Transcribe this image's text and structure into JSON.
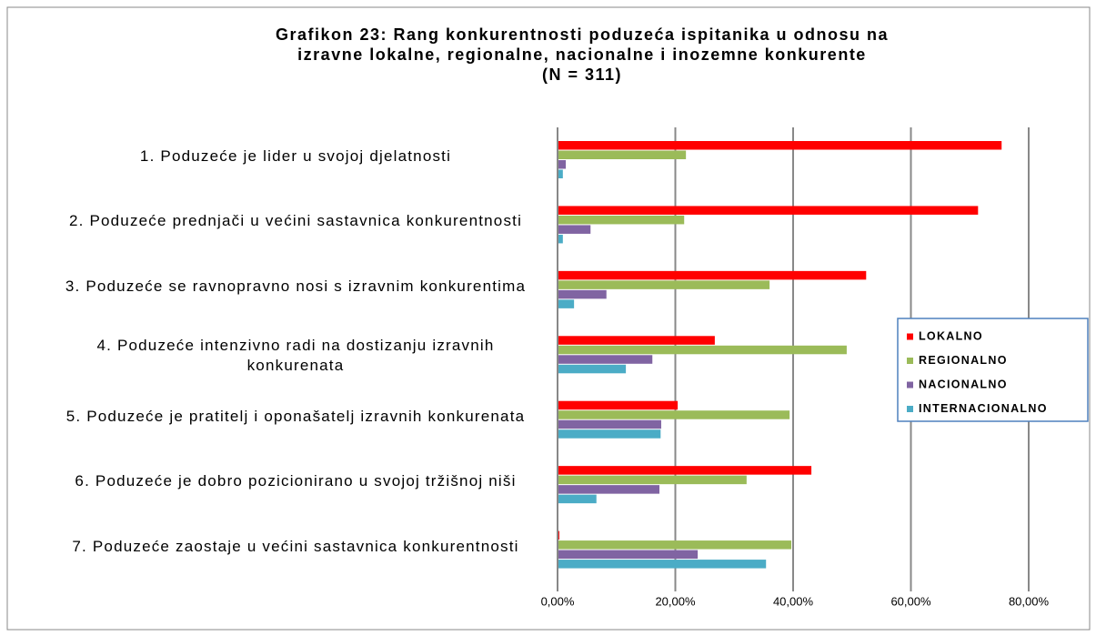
{
  "chart_data": {
    "type": "hbar",
    "title": [
      "Grafikon 23: Rang konkurentnosti poduzeća ispitanika u odnosu na",
      "izravne lokalne, regionalne, nacionalne i inozemne konkurente",
      "(N = 311)"
    ],
    "categories": [
      "1.    Poduzeće je lider u svojoj djelatnosti",
      "2.  Poduzeće prednjači u većini sastavnica konkurentnosti",
      "3.  Poduzeće se ravnopravno nosi s izravnim konkurentima",
      "4.  Poduzeće intenzivno radi na dostizanju izravnih konkurenata",
      "5.  Poduzeće je pratitelj i oponašatelj izravnih konkurenata",
      "6.  Poduzeće je dobro pozicionirano u svojoj tržišnoj niši",
      "7.  Poduzeće zaostaje u većini sastavnica konkurentnosti"
    ],
    "series": [
      {
        "name": "LOKALNO",
        "color": "#ff0000",
        "values": [
          75.4,
          71.4,
          52.4,
          26.7,
          20.4,
          43.1,
          0.3
        ]
      },
      {
        "name": "REGIONALNO",
        "color": "#9bbb59",
        "values": [
          21.8,
          21.5,
          36.0,
          49.1,
          39.4,
          32.1,
          39.7
        ]
      },
      {
        "name": "NACIONALNO",
        "color": "#8064a2",
        "values": [
          1.4,
          5.6,
          8.3,
          16.1,
          17.6,
          17.3,
          23.8
        ]
      },
      {
        "name": "INTERNACIONALNO",
        "color": "#4bacc6",
        "values": [
          0.9,
          0.9,
          2.8,
          11.6,
          17.5,
          6.6,
          35.4
        ]
      }
    ],
    "xlim": [
      0,
      80
    ],
    "xticks": [
      {
        "value": 0,
        "label": "0,00%"
      },
      {
        "value": 20,
        "label": "20,00%"
      },
      {
        "value": 40,
        "label": "40,00%"
      },
      {
        "value": 60,
        "label": "60,00%"
      },
      {
        "value": 80,
        "label": "80,00%"
      }
    ],
    "grid": true,
    "legend": "right"
  }
}
